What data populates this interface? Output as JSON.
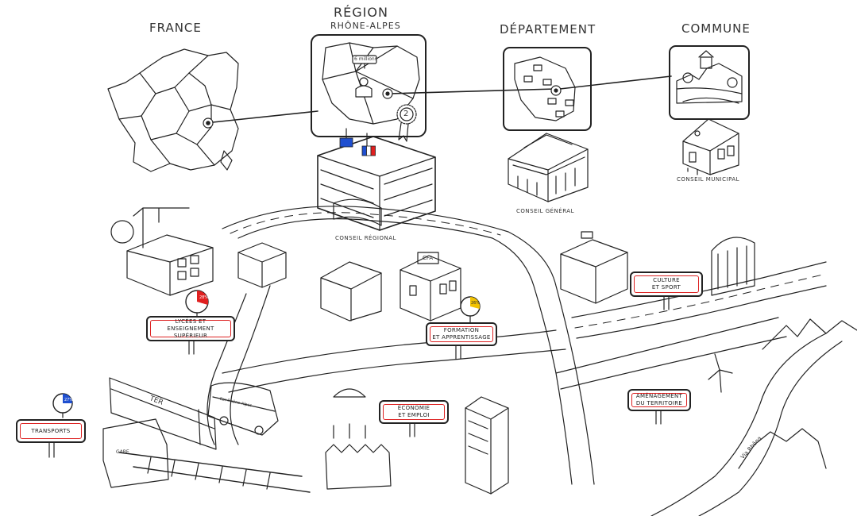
{
  "levels": {
    "france": "FRANCE",
    "region": "RÉGION",
    "region_sub": "RHÔNE-ALPES",
    "departement": "DÉPARTEMENT",
    "commune": "COMMUNE"
  },
  "map_badge": "6 millions",
  "award_number": "2",
  "buildings": {
    "conseil_regional": "CONSEIL RÉGIONAL",
    "conseil_general": "CONSEIL GÉNÉRAL",
    "conseil_municipal": "CONSEIL MUNICIPAL",
    "cfa": "CFA",
    "ter": "TER",
    "gare": "GARE",
    "bus": "Car Rhône-Alpes",
    "via": "Via Rhôna"
  },
  "signs": {
    "lycees": [
      "LYCÉES ET",
      "ENSEIGNEMENT SUPÉRIEUR"
    ],
    "formation": [
      "FORMATION",
      "ET APPRENTISSAGE"
    ],
    "culture": [
      "CULTURE",
      "ET SPORT"
    ],
    "economie": [
      "ÉCONOMIE",
      "ET EMPLOI"
    ],
    "amenagement": [
      "AMÉNAGEMENT",
      "DU TERRITOIRE"
    ],
    "transports": [
      "TRANSPORTS"
    ]
  },
  "pie_labels": {
    "lycees": "28%",
    "formation": "26%",
    "transports": "27%"
  },
  "colors": {
    "ink": "#222222",
    "sign_border": "#dd2222",
    "pie_red": "#e02020",
    "pie_yellow": "#f2c200",
    "pie_blue": "#1f4fd0",
    "flag_eu": "#1f4fd0",
    "flag_fr_red": "#e02020"
  }
}
